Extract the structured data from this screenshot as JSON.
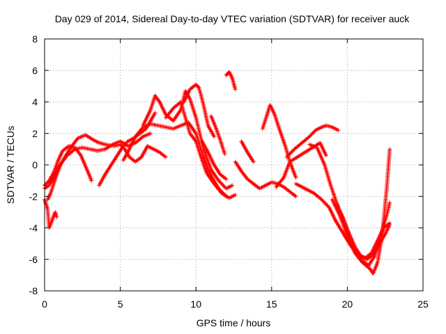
{
  "chart_data": {
    "type": "scatter",
    "title": "Day 029 of 2014, Sidereal Day-to-day VTEC variation (SDTVAR) for receiver auck",
    "xlabel": "GPS time / hours",
    "ylabel": "SDTVAR / TECUs",
    "xlim": [
      0,
      25
    ],
    "ylim": [
      -8,
      8
    ],
    "xticks": [
      "0",
      "5",
      "10",
      "15",
      "20",
      "25"
    ],
    "yticks": [
      "-8",
      "-6",
      "-4",
      "-2",
      "0",
      "2",
      "4",
      "6",
      "8"
    ],
    "grid": true,
    "marker": "+",
    "color": "#ff0000",
    "series": [
      {
        "name": "track-1",
        "x": [
          0.0,
          0.3,
          0.6,
          1.0,
          1.5,
          2.0,
          2.5,
          3.0,
          3.5,
          4.0,
          4.5,
          5.0,
          5.5,
          6.0,
          6.5,
          7.0
        ],
        "y": [
          -1.5,
          -1.3,
          -0.8,
          0.0,
          0.6,
          1.0,
          1.1,
          1.0,
          0.9,
          1.0,
          1.3,
          1.5,
          1.2,
          1.4,
          1.8,
          2.0
        ]
      },
      {
        "name": "track-2",
        "x": [
          0.0,
          0.3,
          0.6,
          0.9,
          1.2,
          1.6,
          2.0,
          2.4,
          2.8,
          3.1
        ],
        "y": [
          -1.3,
          -1.0,
          -0.5,
          0.3,
          0.9,
          1.2,
          1.1,
          0.6,
          -0.3,
          -1.0
        ]
      },
      {
        "name": "track-3",
        "x": [
          0.0,
          0.2,
          0.3,
          0.5,
          0.7,
          0.8
        ],
        "y": [
          -2.2,
          -2.8,
          -4.0,
          -3.5,
          -3.0,
          -3.3
        ]
      },
      {
        "name": "track-4",
        "x": [
          0.2,
          0.4,
          0.7,
          1.0,
          1.4,
          1.8,
          2.2,
          2.7,
          3.2,
          3.6,
          4.0,
          4.6,
          5.0,
          5.3,
          5.6,
          6.0,
          6.4,
          6.8,
          7.2,
          7.6,
          8.0
        ],
        "y": [
          -2.2,
          -1.8,
          -0.9,
          -0.1,
          0.6,
          1.2,
          1.7,
          1.9,
          1.6,
          1.4,
          1.3,
          1.2,
          1.3,
          1.0,
          0.5,
          0.2,
          0.5,
          1.2,
          1.0,
          0.8,
          0.5
        ]
      },
      {
        "name": "track-5",
        "x": [
          3.6,
          4.0,
          4.4,
          4.8,
          5.2,
          5.5,
          5.9,
          6.3,
          6.7,
          7.0,
          7.3
        ],
        "y": [
          -1.3,
          -0.6,
          0.0,
          0.6,
          1.2,
          1.5,
          1.7,
          2.0,
          2.3,
          2.8,
          3.3
        ]
      },
      {
        "name": "track-6",
        "x": [
          5.2,
          5.6,
          6.0,
          6.5,
          7.0,
          7.5,
          8.0,
          8.5,
          9.0,
          9.5,
          10.0,
          10.5,
          11.0,
          11.5,
          12.0
        ],
        "y": [
          0.3,
          1.0,
          1.8,
          2.4,
          2.6,
          2.5,
          2.4,
          2.3,
          2.5,
          2.7,
          2.0,
          0.5,
          -0.7,
          -1.5,
          -2.0
        ]
      },
      {
        "name": "track-7",
        "x": [
          6.5,
          7.0,
          7.3,
          7.6,
          8.0,
          8.5,
          9.0,
          9.3,
          9.6,
          10.0,
          10.5,
          11.0,
          11.5,
          12.0,
          12.4
        ],
        "y": [
          2.5,
          3.5,
          4.4,
          4.0,
          3.2,
          2.8,
          3.5,
          4.7,
          4.2,
          3.0,
          1.0,
          -0.3,
          -1.0,
          -1.5,
          -1.3
        ]
      },
      {
        "name": "track-8",
        "x": [
          8.0,
          8.5,
          9.0,
          9.3,
          9.6,
          10.0,
          10.3,
          10.7,
          11.2,
          11.7,
          12.2,
          12.6
        ],
        "y": [
          3.0,
          3.6,
          4.0,
          3.0,
          2.0,
          1.5,
          0.6,
          -0.5,
          -1.2,
          -1.8,
          -2.1,
          -1.9
        ]
      },
      {
        "name": "track-9",
        "x": [
          9.2,
          9.6,
          10.0,
          10.2,
          10.5,
          10.8,
          11.2
        ],
        "y": [
          4.0,
          4.8,
          5.1,
          4.9,
          3.8,
          2.5,
          1.8
        ]
      },
      {
        "name": "track-10",
        "x": [
          10.4,
          10.8,
          11.2,
          11.6,
          12.0
        ],
        "y": [
          1.5,
          0.8,
          0.0,
          -0.6,
          -0.9
        ]
      },
      {
        "name": "track-11",
        "x": [
          11.0,
          11.3,
          11.6,
          11.9
        ],
        "y": [
          3.1,
          2.4,
          1.6,
          0.7
        ]
      },
      {
        "name": "track-12",
        "x": [
          12.0,
          12.2,
          12.4,
          12.6
        ],
        "y": [
          5.7,
          5.9,
          5.5,
          4.8
        ]
      },
      {
        "name": "track-13",
        "x": [
          12.6,
          13.0,
          13.4,
          13.8,
          14.2,
          14.6,
          15.0,
          15.4,
          15.8,
          16.2,
          16.6
        ],
        "y": [
          0.2,
          -0.4,
          -0.9,
          -1.2,
          -1.5,
          -1.3,
          -1.1,
          -1.2,
          -1.4,
          -1.7,
          -2.0
        ]
      },
      {
        "name": "track-14",
        "x": [
          13.0,
          13.4,
          13.8
        ],
        "y": [
          1.5,
          0.8,
          0.2
        ]
      },
      {
        "name": "track-15",
        "x": [
          14.4,
          14.7,
          14.9,
          15.2,
          15.5,
          15.9,
          16.2,
          16.6
        ],
        "y": [
          2.3,
          3.2,
          3.8,
          3.2,
          2.3,
          1.2,
          0.2,
          -0.8
        ]
      },
      {
        "name": "track-16",
        "x": [
          15.3,
          15.8,
          16.2,
          16.7,
          17.2,
          17.7,
          18.2,
          18.6
        ],
        "y": [
          -1.4,
          -0.8,
          0.2,
          0.5,
          0.8,
          1.1,
          1.4,
          0.6
        ]
      },
      {
        "name": "track-17",
        "x": [
          16.0,
          16.5,
          17.0,
          17.5,
          17.9,
          18.3,
          18.6,
          19.0,
          19.4
        ],
        "y": [
          0.5,
          1.0,
          1.4,
          1.8,
          2.2,
          2.4,
          2.5,
          2.4,
          2.2
        ]
      },
      {
        "name": "track-18",
        "x": [
          16.6,
          17.2,
          17.8,
          18.3,
          18.8,
          19.2,
          19.7,
          20.2,
          20.7,
          21.2,
          21.6,
          22.0,
          22.4,
          22.8
        ],
        "y": [
          -1.2,
          -1.5,
          -1.8,
          -2.2,
          -2.7,
          -3.5,
          -4.3,
          -5.1,
          -5.7,
          -5.9,
          -5.6,
          -4.8,
          -4.0,
          -3.7
        ]
      },
      {
        "name": "track-19",
        "x": [
          17.5,
          18.0,
          18.5,
          18.9,
          19.4,
          19.9,
          20.4,
          20.9,
          21.4,
          21.8,
          22.2,
          22.6,
          22.8
        ],
        "y": [
          1.3,
          1.1,
          0.0,
          -1.3,
          -2.7,
          -4.0,
          -5.2,
          -6.0,
          -6.4,
          -5.8,
          -4.5,
          -3.2,
          -2.4
        ]
      },
      {
        "name": "track-20",
        "x": [
          19.0,
          19.5,
          20.0,
          20.5,
          21.0,
          21.5,
          21.7,
          22.0,
          22.3,
          22.6,
          22.8
        ],
        "y": [
          -2.2,
          -3.2,
          -4.5,
          -5.6,
          -6.2,
          -6.6,
          -6.9,
          -6.2,
          -4.5,
          -1.5,
          1.0
        ]
      },
      {
        "name": "track-21",
        "x": [
          19.3,
          19.7,
          20.1,
          20.5,
          20.9,
          21.3,
          21.7,
          22.1,
          22.5,
          22.8
        ],
        "y": [
          -2.5,
          -3.3,
          -4.3,
          -5.2,
          -5.8,
          -6.0,
          -5.7,
          -5.0,
          -4.4,
          -3.8
        ]
      }
    ]
  }
}
